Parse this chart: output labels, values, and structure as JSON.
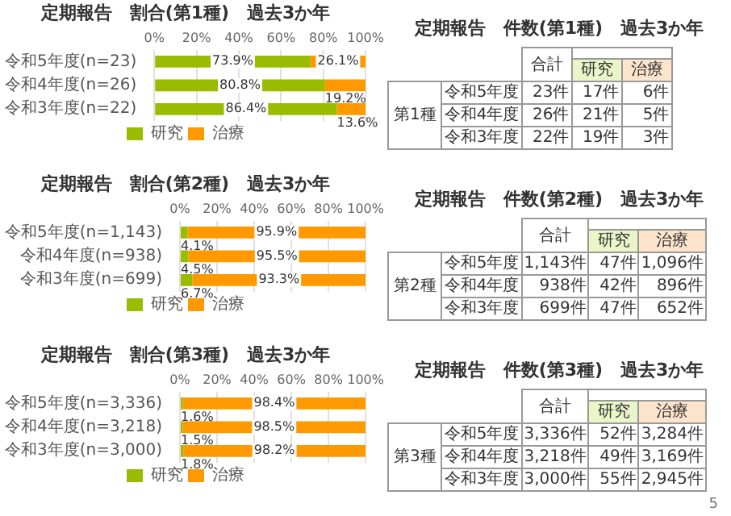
{
  "chart_data": [
    {
      "type": "bar",
      "title": "定期報告　割合(第1種)　過去3か年",
      "orientation": "horizontal",
      "stacked": true,
      "categories": [
        "令和5年度(n=23)",
        "令和4年度(n=26)",
        "令和3年度(n=22)"
      ],
      "series": [
        {
          "name": "研究",
          "color": "#99bb00",
          "values": [
            73.9,
            80.8,
            86.4
          ],
          "value_labels": [
            "73.9%",
            "80.8%",
            "86.4%"
          ]
        },
        {
          "name": "治療",
          "color": "#ff9900",
          "values": [
            26.1,
            19.2,
            13.6
          ],
          "value_labels": [
            "26.1%",
            "19.2%",
            "13.6%"
          ]
        }
      ],
      "xlim": [
        0,
        100
      ],
      "xticks": [
        {
          "value": 0,
          "label": "0%"
        },
        {
          "value": 20,
          "label": "20%"
        },
        {
          "value": 40,
          "label": "40%"
        },
        {
          "value": 60,
          "label": "60%"
        },
        {
          "value": 80,
          "label": "80%"
        },
        {
          "value": 100,
          "label": "100%"
        }
      ],
      "grid": "x",
      "legend": "bottom"
    },
    {
      "type": "bar",
      "title": "定期報告　割合(第2種)　過去3か年",
      "orientation": "horizontal",
      "stacked": true,
      "categories": [
        "令和5年度(n=1,143)",
        "令和4年度(n=938)",
        "令和3年度(n=699)"
      ],
      "series": [
        {
          "name": "研究",
          "color": "#99bb00",
          "values": [
            4.1,
            4.5,
            6.7
          ],
          "value_labels": [
            "4.1%",
            "4.5%",
            "6.7%"
          ]
        },
        {
          "name": "治療",
          "color": "#ff9900",
          "values": [
            95.9,
            95.5,
            93.3
          ],
          "value_labels": [
            "95.9%",
            "95.5%",
            "93.3%"
          ]
        }
      ],
      "xlim": [
        0,
        100
      ],
      "xticks": [
        {
          "value": 0,
          "label": "0%"
        },
        {
          "value": 20,
          "label": "20%"
        },
        {
          "value": 40,
          "label": "40%"
        },
        {
          "value": 60,
          "label": "60%"
        },
        {
          "value": 80,
          "label": "80%"
        },
        {
          "value": 100,
          "label": "100%"
        }
      ],
      "grid": "x",
      "legend": "bottom"
    },
    {
      "type": "bar",
      "title": "定期報告　割合(第3種)　過去3か年",
      "orientation": "horizontal",
      "stacked": true,
      "categories": [
        "令和5年度(n=3,336)",
        "令和4年度(n=3,218)",
        "令和3年度(n=3,000)"
      ],
      "series": [
        {
          "name": "研究",
          "color": "#99bb00",
          "values": [
            1.6,
            1.5,
            1.8
          ],
          "value_labels": [
            "1.6%",
            "1.5%",
            "1.8%"
          ]
        },
        {
          "name": "治療",
          "color": "#ff9900",
          "values": [
            98.4,
            98.5,
            98.2
          ],
          "value_labels": [
            "98.4%",
            "98.5%",
            "98.2%"
          ]
        }
      ],
      "xlim": [
        0,
        100
      ],
      "xticks": [
        {
          "value": 0,
          "label": "0%"
        },
        {
          "value": 20,
          "label": "20%"
        },
        {
          "value": 40,
          "label": "40%"
        },
        {
          "value": 60,
          "label": "60%"
        },
        {
          "value": 80,
          "label": "80%"
        },
        {
          "value": 100,
          "label": "100%"
        }
      ],
      "grid": "x",
      "legend": "bottom"
    },
    {
      "type": "other",
      "title": "定期報告　件数(第1種)　過去3か年",
      "ylabel": "第1種",
      "categories": [
        "令和5年度",
        "令和4年度",
        "令和3年度"
      ],
      "series": [
        {
          "name": "合計",
          "values": [
            23,
            26,
            22
          ],
          "value_labels": [
            "23件",
            "26件",
            "22件"
          ]
        },
        {
          "name": "研究",
          "values": [
            17,
            21,
            19
          ],
          "value_labels": [
            "17件",
            "21件",
            "19件"
          ]
        },
        {
          "name": "治療",
          "values": [
            6,
            5,
            3
          ],
          "value_labels": [
            "6件",
            "5件",
            "3件"
          ]
        }
      ]
    },
    {
      "type": "other",
      "title": "定期報告　件数(第2種)　過去3か年",
      "ylabel": "第2種",
      "categories": [
        "令和5年度",
        "令和4年度",
        "令和3年度"
      ],
      "series": [
        {
          "name": "合計",
          "values": [
            1143,
            938,
            699
          ],
          "value_labels": [
            "1,143件",
            "938件",
            "699件"
          ]
        },
        {
          "name": "研究",
          "values": [
            47,
            42,
            47
          ],
          "value_labels": [
            "47件",
            "42件",
            "47件"
          ]
        },
        {
          "name": "治療",
          "values": [
            1096,
            896,
            652
          ],
          "value_labels": [
            "1,096件",
            "896件",
            "652件"
          ]
        }
      ]
    },
    {
      "type": "other",
      "title": "定期報告　件数(第3種)　過去3か年",
      "ylabel": "第3種",
      "categories": [
        "令和5年度",
        "令和4年度",
        "令和3年度"
      ],
      "series": [
        {
          "name": "合計",
          "values": [
            3336,
            3218,
            3000
          ],
          "value_labels": [
            "3,336件",
            "3,218件",
            "3,000件"
          ]
        },
        {
          "name": "研究",
          "values": [
            52,
            49,
            55
          ],
          "value_labels": [
            "52件",
            "49件",
            "55件"
          ]
        },
        {
          "name": "治療",
          "values": [
            3284,
            3169,
            2945
          ],
          "value_labels": [
            "3,284件",
            "3,169件",
            "2,945件"
          ]
        }
      ],
      "annotations": [
        "5"
      ]
    }
  ]
}
